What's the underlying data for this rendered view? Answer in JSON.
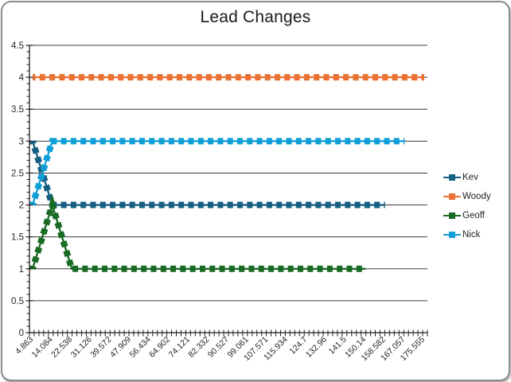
{
  "frame": {
    "border_color": "#8C8C8C",
    "background": "#FFFFFF"
  },
  "chart_data": {
    "type": "line",
    "title": "Lead Changes",
    "categories": [
      "4.863",
      "14.084",
      "22.538",
      "31.126",
      "39.572",
      "47.909",
      "56.434",
      "64.902",
      "74.121",
      "82.332",
      "90.527",
      "99.061",
      "107.571",
      "115.934",
      "124.7",
      "132.96",
      "141.5",
      "150.14",
      "158.582",
      "167.057",
      "175.555"
    ],
    "series": [
      {
        "name": "Kev",
        "color": "#156082",
        "values": [
          3,
          2,
          2,
          2,
          2,
          2,
          2,
          2,
          2,
          2,
          2,
          2,
          2,
          2,
          2,
          2,
          2,
          2,
          2
        ]
      },
      {
        "name": "Woody",
        "color": "#E97132",
        "values": [
          4,
          4,
          4,
          4,
          4,
          4,
          4,
          4,
          4,
          4,
          4,
          4,
          4,
          4,
          4,
          4,
          4,
          4,
          4,
          4,
          4
        ]
      },
      {
        "name": "Geoff",
        "color": "#196B24",
        "values": [
          1,
          2,
          1,
          1,
          1,
          1,
          1,
          1,
          1,
          1,
          1,
          1,
          1,
          1,
          1,
          1,
          1,
          1
        ]
      },
      {
        "name": "Nick",
        "color": "#0F9ED5",
        "values": [
          2,
          3,
          3,
          3,
          3,
          3,
          3,
          3,
          3,
          3,
          3,
          3,
          3,
          3,
          3,
          3,
          3,
          3,
          3,
          3
        ]
      }
    ],
    "y_axis": {
      "min": 0,
      "max": 4.5,
      "major_step": 0.5,
      "minor_step": 0.1,
      "tick_labels": [
        "0",
        "0.5",
        "1",
        "1.5",
        "2",
        "2.5",
        "3",
        "3.5",
        "4",
        "4.5"
      ]
    },
    "x_label_rotation_deg": 45,
    "grid": true,
    "legend_position": "right",
    "line_style": "dashed-with-square-markers"
  }
}
